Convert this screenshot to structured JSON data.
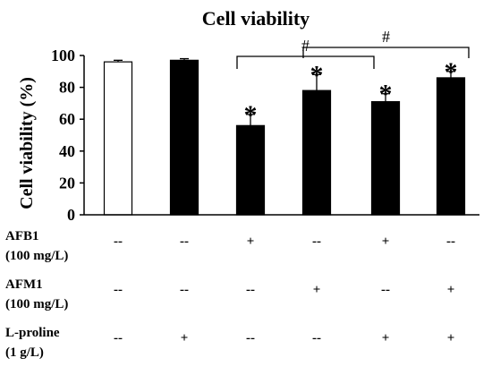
{
  "chart_data": {
    "type": "bar",
    "title": "Cell viability",
    "ylabel": "Cell viability (%)",
    "ylim": [
      0,
      100
    ],
    "yticks": [
      "0",
      "20",
      "40",
      "60",
      "80",
      "100"
    ],
    "values": [
      96,
      97,
      56,
      78,
      71,
      86
    ],
    "errors": [
      1,
      1,
      7,
      10,
      5,
      4
    ],
    "bar_colors": [
      "#ffffff",
      "#000000",
      "#000000",
      "#000000",
      "#000000",
      "#000000"
    ],
    "stars": [
      "",
      "",
      "*",
      "*",
      "*",
      "*"
    ],
    "treatments": [
      {
        "label_line1": "AFB1",
        "label_line2": "(100 mg/L)",
        "values": [
          "--",
          "--",
          "+",
          "--",
          "+",
          "--"
        ]
      },
      {
        "label_line1": "AFM1",
        "label_line2": "(100 mg/L)",
        "values": [
          "--",
          "--",
          "--",
          "+",
          "--",
          "+"
        ]
      },
      {
        "label_line1": "L-proline",
        "label_line2": "(1 g/L)",
        "values": [
          "--",
          "+",
          "--",
          "--",
          "+",
          "+"
        ]
      }
    ],
    "significance": [
      {
        "label": "#",
        "from": 2,
        "to": 4
      },
      {
        "label": "#",
        "from": 3,
        "to": 5
      }
    ]
  }
}
